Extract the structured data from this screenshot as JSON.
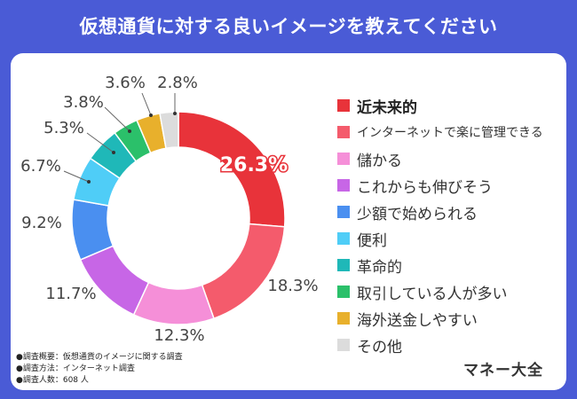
{
  "title": "仮想通貨に対する良いイメージを教えてください",
  "chart_data": {
    "type": "pie",
    "style": "donut",
    "title": "仮想通貨に対する良いイメージを教えてください",
    "categories": [
      "近未来的",
      "インターネットで楽に管理できる",
      "儲かる",
      "これからも伸びそう",
      "少額で始められる",
      "便利",
      "革命的",
      "取引している人が多い",
      "海外送金しやすい",
      "その他"
    ],
    "values": [
      26.3,
      18.3,
      12.3,
      11.7,
      9.2,
      6.7,
      5.3,
      3.8,
      3.6,
      2.8
    ],
    "labels": [
      "26.3%",
      "18.3%",
      "12.3%",
      "11.7%",
      "9.2%",
      "6.7%",
      "5.3%",
      "3.8%",
      "3.6%",
      "2.8%"
    ],
    "colors": [
      "#e8333a",
      "#f45b6c",
      "#f58fd8",
      "#c766e6",
      "#4a8ff0",
      "#4fcdf7",
      "#1fb8b8",
      "#2bc06a",
      "#e8b02c",
      "#dcdcdc"
    ],
    "legend_position": "right"
  },
  "notes": [
    "●調査概要：仮想通貨のイメージに関する調査",
    "●調査方法：インターネット調査",
    "●調査人数：608 人"
  ],
  "brand": "マネー大全"
}
